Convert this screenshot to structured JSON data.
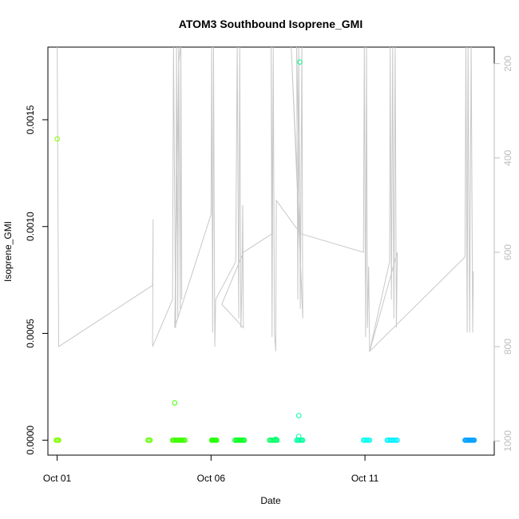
{
  "chart_data": {
    "type": "scatter",
    "title": "ATOM3 Southbound Isoprene_GMI",
    "xlabel": "Date",
    "ylabel": "Isoprene_GMI",
    "x_ticks": [
      {
        "day": 1,
        "label": "Oct 01"
      },
      {
        "day": 6,
        "label": "Oct 06"
      },
      {
        "day": 11,
        "label": "Oct 11"
      }
    ],
    "xlim_days": [
      0.7,
      15.2
    ],
    "y_ticks": [
      {
        "value": 0.0,
        "label": "0.0000"
      },
      {
        "value": 0.0005,
        "label": "0.0005"
      },
      {
        "value": 0.001,
        "label": "0.0010"
      },
      {
        "value": 0.0015,
        "label": "0.0015"
      }
    ],
    "ylim": [
      -7e-05,
      0.00184
    ],
    "secondary_axis": {
      "side": "right",
      "color": "#bdbdbd",
      "ticks": [
        200,
        400,
        600,
        800,
        1000
      ],
      "lim": [
        1030,
        165
      ],
      "series_color": "#c8c8c8"
    },
    "points": [
      {
        "x": 1.0,
        "y": 0.00141,
        "color": "#80ff00"
      },
      {
        "x": 4.82,
        "y": 0.000175,
        "color": "#40ff00"
      },
      {
        "x": 8.88,
        "y": 0.00177,
        "color": "#00ff80"
      },
      {
        "x": 8.85,
        "y": 0.000115,
        "color": "#00ffa0"
      },
      {
        "x": 8.85,
        "y": 1.8e-05,
        "color": "#00ffa0"
      },
      {
        "x": 8.1,
        "y": 5e-06,
        "color": "#00ff80"
      }
    ],
    "clusters": [
      {
        "x_start": 0.97,
        "x_end": 1.05,
        "y": 0.0,
        "color": "#80ff00",
        "n": 4
      },
      {
        "x_start": 3.95,
        "x_end": 4.02,
        "y": 0.0,
        "color": "#60ff00",
        "n": 3
      },
      {
        "x_start": 4.75,
        "x_end": 5.15,
        "y": 0.0,
        "color": "#40ff00",
        "n": 14
      },
      {
        "x_start": 6.02,
        "x_end": 6.18,
        "y": 0.0,
        "color": "#20ff00",
        "n": 7
      },
      {
        "x_start": 6.78,
        "x_end": 7.08,
        "y": 0.0,
        "color": "#00ff20",
        "n": 10
      },
      {
        "x_start": 7.9,
        "x_end": 8.15,
        "y": 0.0,
        "color": "#00ff60",
        "n": 8
      },
      {
        "x_start": 8.78,
        "x_end": 8.98,
        "y": 0.0,
        "color": "#00ffa0",
        "n": 7
      },
      {
        "x_start": 10.95,
        "x_end": 11.15,
        "y": 0.0,
        "color": "#00fff0",
        "n": 7
      },
      {
        "x_start": 11.72,
        "x_end": 12.05,
        "y": 0.0,
        "color": "#00f0ff",
        "n": 10
      },
      {
        "x_start": 14.25,
        "x_end": 14.55,
        "y": 0.0,
        "color": "#00a0ff",
        "n": 12
      }
    ],
    "altitude_line": [
      [
        1.0,
        160
      ],
      [
        1.05,
        800
      ],
      [
        4.1,
        670
      ],
      [
        4.12,
        530
      ],
      [
        4.1,
        800
      ],
      [
        4.75,
        700
      ],
      [
        4.78,
        160
      ],
      [
        4.85,
        760
      ],
      [
        4.88,
        160
      ],
      [
        4.92,
        740
      ],
      [
        4.95,
        160
      ],
      [
        5.0,
        720
      ],
      [
        5.02,
        160
      ],
      [
        5.05,
        700
      ],
      [
        5.02,
        160
      ],
      [
        4.95,
        200
      ],
      [
        4.82,
        760
      ],
      [
        6.0,
        520
      ],
      [
        6.02,
        160
      ],
      [
        6.05,
        770
      ],
      [
        6.08,
        160
      ],
      [
        6.12,
        800
      ],
      [
        6.15,
        700
      ],
      [
        6.8,
        620
      ],
      [
        6.85,
        160
      ],
      [
        6.9,
        740
      ],
      [
        6.93,
        160
      ],
      [
        6.97,
        760
      ],
      [
        7.0,
        680
      ],
      [
        7.03,
        500
      ],
      [
        7.05,
        760
      ],
      [
        6.35,
        710
      ],
      [
        7.05,
        600
      ],
      [
        8.0,
        560
      ],
      [
        7.95,
        160
      ],
      [
        7.98,
        780
      ],
      [
        8.02,
        160
      ],
      [
        8.06,
        770
      ],
      [
        8.1,
        810
      ],
      [
        8.12,
        490
      ],
      [
        8.9,
        560
      ],
      [
        8.78,
        160
      ],
      [
        8.82,
        700
      ],
      [
        8.85,
        160
      ],
      [
        8.9,
        720
      ],
      [
        8.95,
        160
      ],
      [
        8.98,
        740
      ],
      [
        8.6,
        160
      ],
      [
        8.88,
        560
      ],
      [
        10.95,
        600
      ],
      [
        10.98,
        160
      ],
      [
        11.02,
        780
      ],
      [
        11.05,
        160
      ],
      [
        11.08,
        760
      ],
      [
        11.12,
        630
      ],
      [
        11.15,
        810
      ],
      [
        11.8,
        620
      ],
      [
        11.82,
        160
      ],
      [
        11.86,
        700
      ],
      [
        11.9,
        160
      ],
      [
        11.94,
        740
      ],
      [
        11.98,
        160
      ],
      [
        12.02,
        760
      ],
      [
        12.05,
        600
      ],
      [
        11.15,
        810
      ],
      [
        14.25,
        610
      ],
      [
        14.28,
        160
      ],
      [
        14.32,
        770
      ],
      [
        14.35,
        160
      ],
      [
        14.4,
        770
      ],
      [
        14.45,
        160
      ],
      [
        14.5,
        770
      ],
      [
        14.52,
        640
      ]
    ]
  }
}
